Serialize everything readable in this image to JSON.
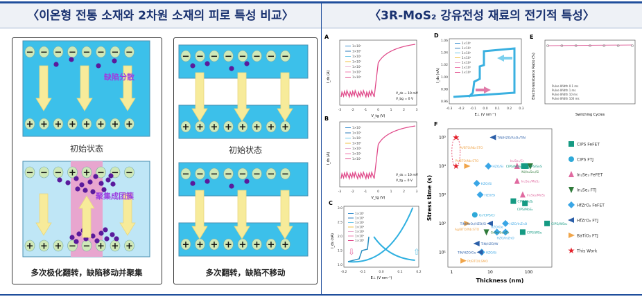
{
  "header": {
    "left_title": "〈이온형 전통 소재와 2차원 소재의 피로 특성 비교〉",
    "right_title": "〈3R-MoS₂ 강유전성 재료의 전기적 특성〉"
  },
  "left": {
    "box1": {
      "label_scatter": "缺陷分散",
      "initial": "初始状态",
      "label_cluster": "聚集成团簇",
      "caption": "多次极化翻转，缺陷移动并聚集"
    },
    "box2": {
      "initial": "初始状态",
      "caption": "多次翻转，缺陷不移动"
    }
  },
  "colors": {
    "layer": "#3cc0ea",
    "layer_light": "#bfe6f6",
    "pink": "#e8a6cf",
    "arrow": "#f7eb9a",
    "defect": "#5a1a9c"
  },
  "panels": {
    "A": {
      "letter": "A",
      "xlabel": "V_tg (V)",
      "ylabel": "I_ds (A)",
      "note1": "V_ds = 10 mV",
      "note2": "V_bg = 0 V",
      "xticks": [
        "-3",
        "-2",
        "-1",
        "0",
        "1",
        "2",
        "3"
      ]
    },
    "B": {
      "letter": "B",
      "xlabel": "V_tg (V)",
      "ylabel": "I_ds (A)",
      "note1": "V_ds = 10 mV",
      "note2": "V_tg = 0 V",
      "xticks": [
        "-3",
        "-2",
        "-1",
        "0",
        "1",
        "2",
        "3"
      ]
    },
    "C": {
      "letter": "C",
      "xlabel": "E⊥ (V nm⁻¹)",
      "ylabel": "I_ds (nA)",
      "yticks": [
        "3.0",
        "2.5",
        "2.0",
        "1.5",
        "1.0"
      ],
      "xticks": [
        "-0.2",
        "-0.1",
        "0.0",
        "0.1",
        "0.2"
      ]
    },
    "D": {
      "letter": "D",
      "xlabel": "E⊥ (V nm⁻¹)",
      "ylabel": "I_ds (nA)",
      "yticks": [
        "1.06",
        "1.04",
        "1.02",
        "1.00",
        "0.98",
        "0.96"
      ],
      "xticks": [
        "-0.3",
        "-0.2",
        "-0.1",
        "0.0",
        "0.1",
        "0.2",
        "0.3"
      ]
    },
    "E": {
      "letter": "E",
      "xlabel": "Switching Cycles",
      "ylabel": "Electroresistance Ratio (%)",
      "legend": [
        "Pulse Width  0.1 ms",
        "Pulse Width  1 ms",
        "Pulse Width  10 ms",
        "Pulse Width  100 ms"
      ]
    },
    "legend_cycles": [
      "1×10⁰",
      "1×10¹",
      "1×10²",
      "1×10³",
      "1×10⁴",
      "1×10⁵",
      "1×10⁶"
    ]
  },
  "chart_data": {
    "type": "scatter",
    "title": "F",
    "xlabel": "Thickness (nm)",
    "ylabel": "Stress time (s)",
    "xscale": "log",
    "yscale": "log",
    "xlim": [
      0.8,
      400
    ],
    "ylim": [
      3,
      200000
    ],
    "xticks": [
      "1",
      "10",
      "100"
    ],
    "yticks": [
      "10⁵",
      "10⁴",
      "10³",
      "10²",
      "10¹"
    ],
    "series": [
      {
        "name": "CIPS FeFET",
        "color": "#159a83",
        "marker": "square",
        "points": [
          {
            "x": 75,
            "y": 10000,
            "label": "CIPS/SnS"
          },
          {
            "x": 85,
            "y": 10000,
            "label": "CIPS/MoS₂"
          },
          {
            "x": 40,
            "y": 600,
            "label": "CIPS/MoS₂"
          },
          {
            "x": 80,
            "y": 500,
            "label": "CIPS/MoS₂"
          },
          {
            "x": 300,
            "y": 100,
            "label": "CIPS/WSe₂"
          },
          {
            "x": 70,
            "y": 50,
            "label": "CIPS/WSe"
          }
        ]
      },
      {
        "name": "CIPS FTJ",
        "color": "#2fa9d8",
        "marker": "circle",
        "points": [
          {
            "x": 4,
            "y": 200,
            "label": "Gr/CIPS/Cr"
          }
        ]
      },
      {
        "name": "In₂Se₃ FeFET",
        "color": "#e06aa0",
        "marker": "triangle-up",
        "points": [
          {
            "x": 50,
            "y": 10000,
            "label": "In₂Se₃/Cr"
          },
          {
            "x": 50,
            "y": 3000,
            "label": "In₂Se₃/MoS₂"
          },
          {
            "x": 70,
            "y": 1000,
            "label": "In₂Se₃/MoS₂"
          }
        ]
      },
      {
        "name": "In₂Se₃ FTJ",
        "color": "#2f7a3a",
        "marker": "triangle-down",
        "points": [
          {
            "x": 110,
            "y": 10000,
            "label": "Ni/In₂Se₃/Si"
          },
          {
            "x": 8,
            "y": 50,
            "label": "Gr/In₂Se₃/Cr"
          }
        ]
      },
      {
        "name": "HfZrO₂ FeFET",
        "color": "#3aa6e6",
        "marker": "diamond",
        "points": [
          {
            "x": 9,
            "y": 10000,
            "label": "HZO/Si"
          },
          {
            "x": 4.5,
            "y": 2500,
            "label": "HZO/Si"
          },
          {
            "x": 5.5,
            "y": 1000,
            "label": "HZO/Si"
          },
          {
            "x": 25,
            "y": 100,
            "label": "HZO/InZnO"
          },
          {
            "x": 15,
            "y": 50,
            "label": "HZO/Ge"
          },
          {
            "x": 25,
            "y": 50,
            "label": "HZO/InZnO"
          },
          {
            "x": 6,
            "y": 10,
            "label": "HZO/Si"
          }
        ]
      },
      {
        "name": "HfZrO₂ FTJ",
        "color": "#2a5ea8",
        "marker": "triangle-left",
        "points": [
          {
            "x": 12,
            "y": 100000,
            "label": "TiN/HZO/Al₂O₃/TiN"
          },
          {
            "x": 10,
            "y": 100,
            "label": "TiN/Al₂O₃/HZO/Si"
          },
          {
            "x": 4.5,
            "y": 20,
            "label": "TiN/HZO/W"
          },
          {
            "x": 5.5,
            "y": 10,
            "label": "TiN/HZO/Ge"
          }
        ]
      },
      {
        "name": "BaTiO₃ FTJ",
        "color": "#f0a54a",
        "marker": "triangle-right",
        "points": [
          {
            "x": 2.5,
            "y": 10000,
            "label": "Pt/BTO/Nb:STO"
          },
          {
            "x": 2.5,
            "y": 100,
            "label": "Ag/BTO/Nb:STO"
          },
          {
            "x": 2,
            "y": 5,
            "label": "Pt/BTO/LSMO"
          }
        ]
      },
      {
        "name": "This Work",
        "color": "#e3202a",
        "marker": "star",
        "points": [
          {
            "x": 1.3,
            "y": 100000,
            "label": ""
          },
          {
            "x": 1.3,
            "y": 10000,
            "label": ""
          }
        ]
      }
    ],
    "extra_labels": [
      "Pt/BTO/Nb:STO"
    ],
    "legend_position": "right"
  }
}
